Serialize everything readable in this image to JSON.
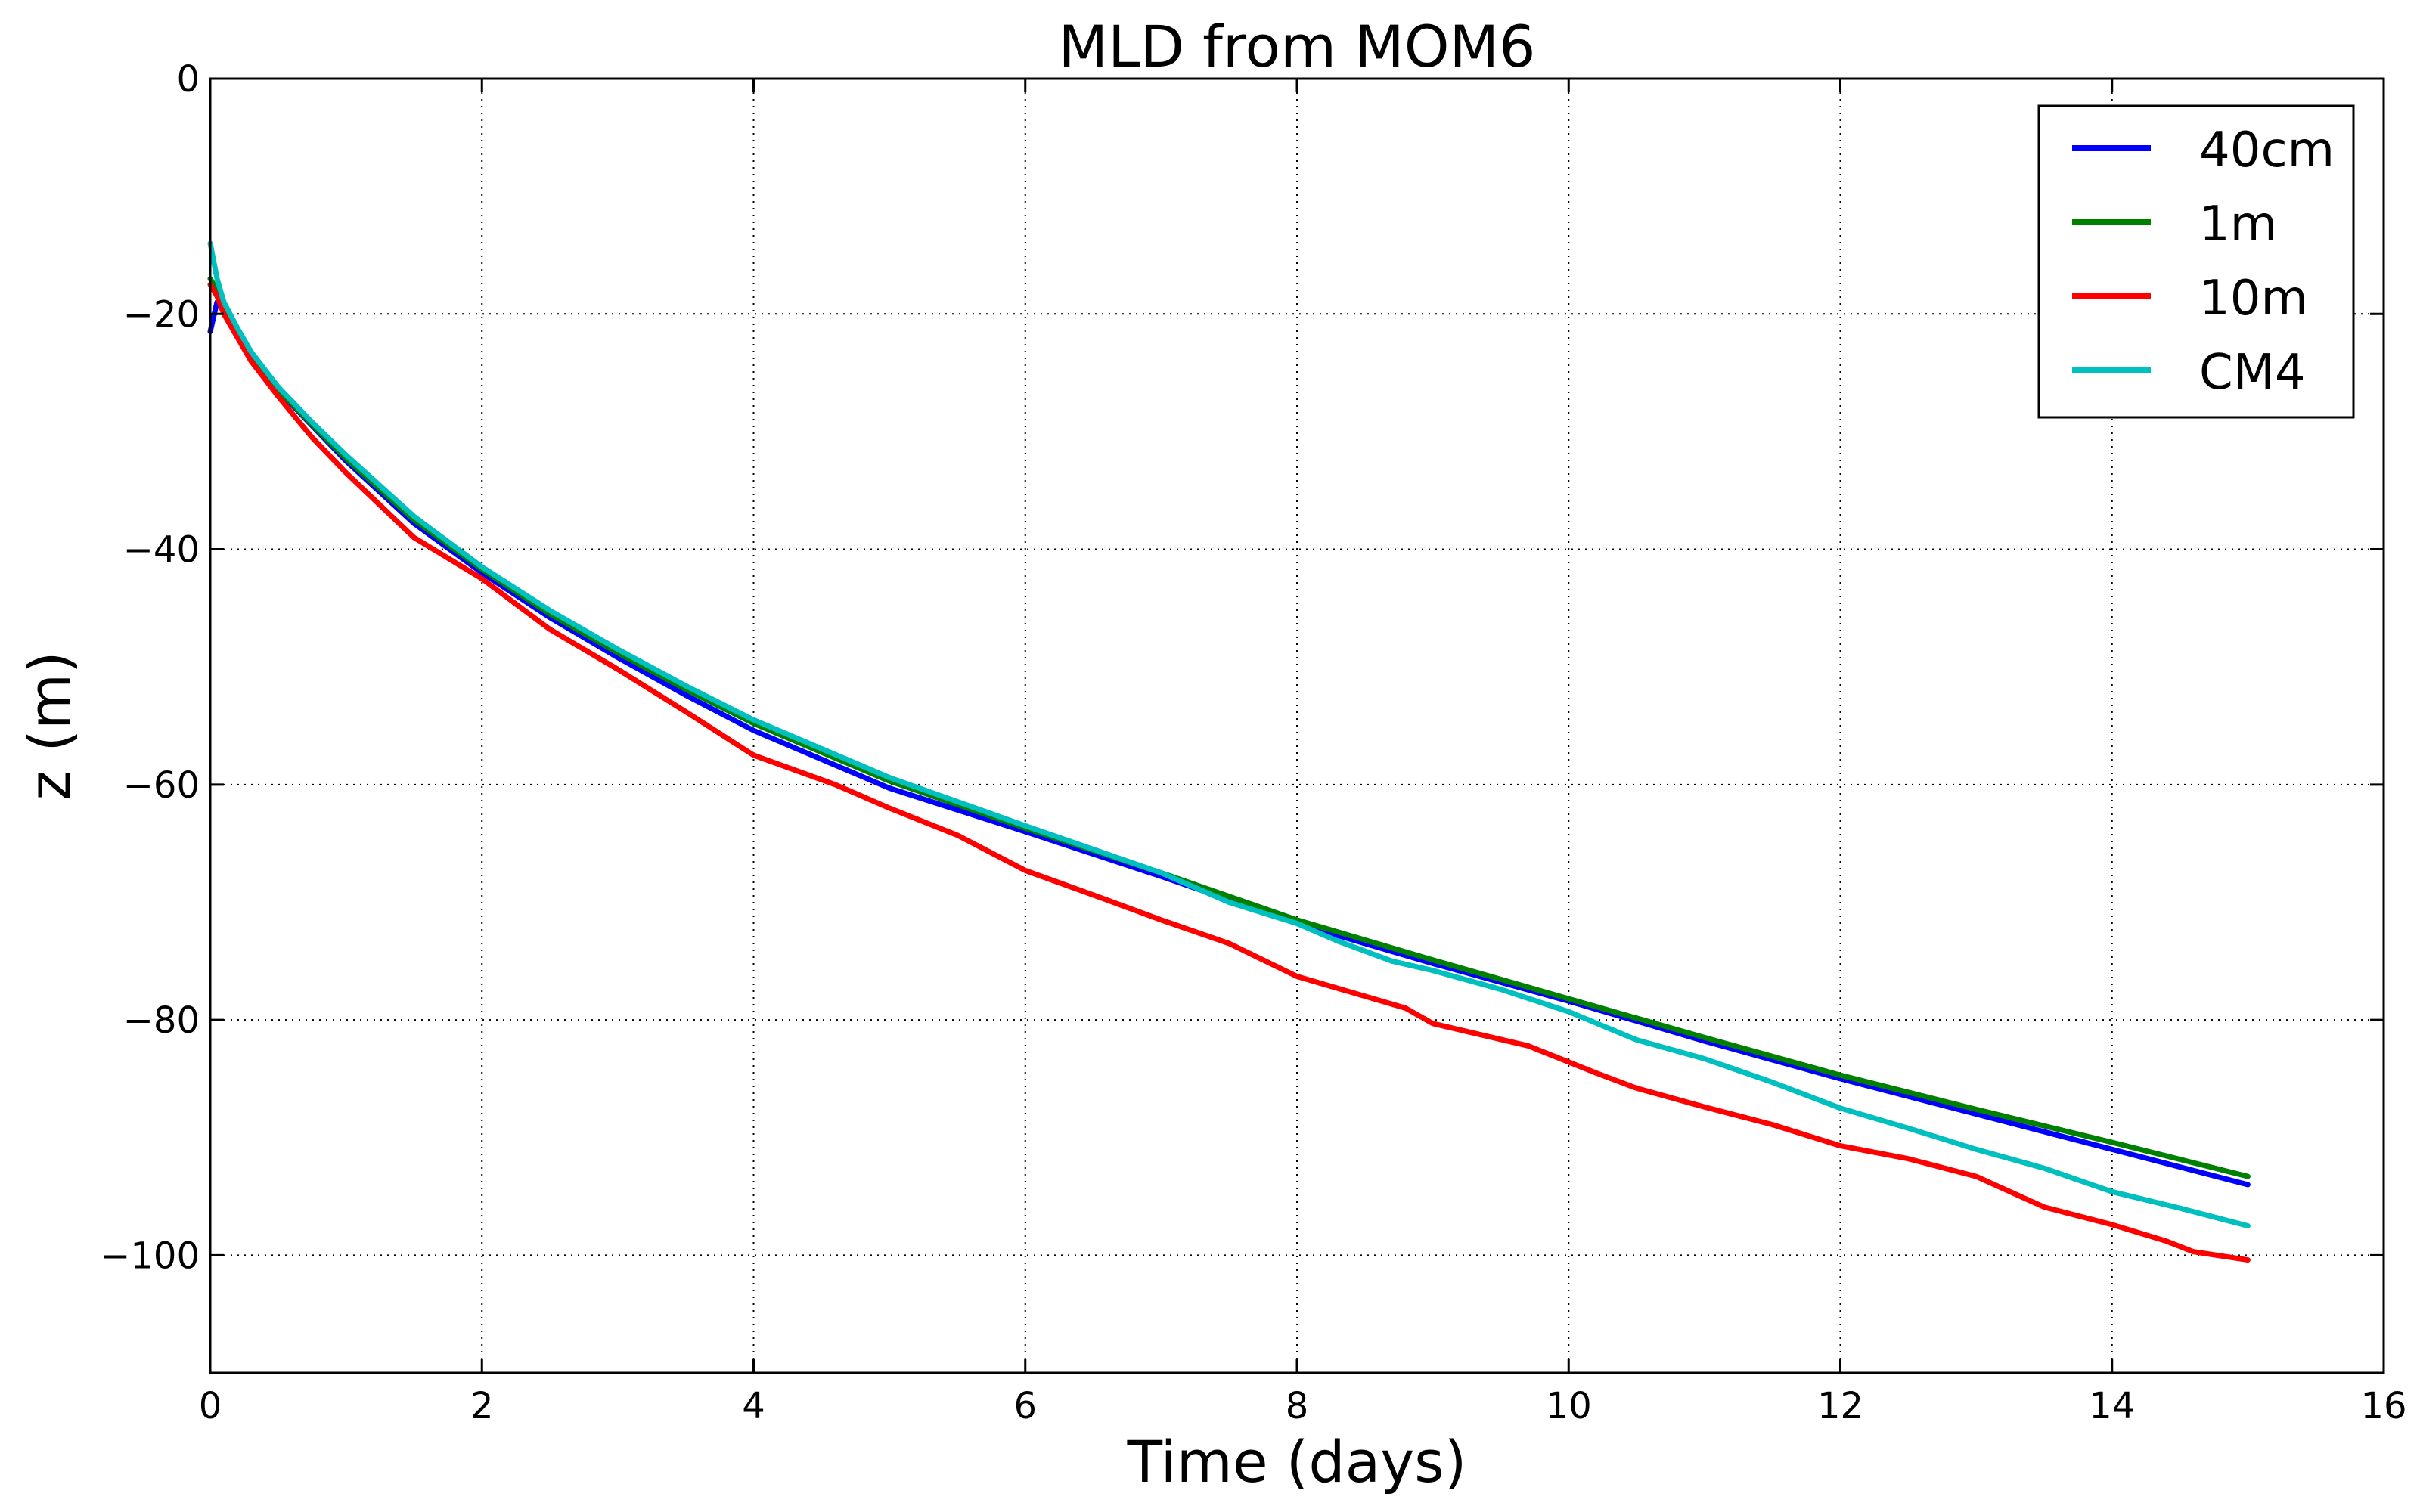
{
  "chart_data": {
    "type": "line",
    "title": "MLD from MOM6",
    "xlabel": "Time (days)",
    "ylabel": "z (m)",
    "xlim": [
      0,
      16
    ],
    "ylim": [
      -110,
      0
    ],
    "xticks": [
      0,
      2,
      4,
      6,
      8,
      10,
      12,
      14,
      16
    ],
    "yticks": [
      0,
      -20,
      -40,
      -60,
      -80,
      -100
    ],
    "xtick_labels": [
      "0",
      "2",
      "4",
      "6",
      "8",
      "10",
      "12",
      "14",
      "16"
    ],
    "ytick_labels": [
      "0",
      "−20",
      "−40",
      "−60",
      "−80",
      "−100"
    ],
    "grid": true,
    "legend_position": "top-right",
    "series": [
      {
        "name": "40cm",
        "color": "#0000ff",
        "x": [
          0,
          0.05,
          0.1,
          0.2,
          0.3,
          0.5,
          0.75,
          1,
          1.5,
          2,
          2.5,
          3,
          3.5,
          4,
          5,
          6,
          7,
          8,
          9,
          10,
          11,
          12,
          13,
          14,
          15
        ],
        "y": [
          -21.5,
          -19,
          -19.5,
          -21.5,
          -23.5,
          -26.5,
          -29.5,
          -32.5,
          -37.8,
          -42,
          -45.8,
          -49.2,
          -52.4,
          -55.4,
          -60.3,
          -64,
          -67.8,
          -71.8,
          -75.2,
          -78.4,
          -81.8,
          -85,
          -88,
          -91,
          -94
        ]
      },
      {
        "name": "1m",
        "color": "#008000",
        "x": [
          0,
          0.05,
          0.1,
          0.2,
          0.3,
          0.5,
          0.75,
          1,
          1.5,
          2,
          2.5,
          3,
          3.5,
          4,
          5,
          6,
          7,
          8,
          9,
          10,
          11,
          12,
          13,
          14,
          15
        ],
        "y": [
          -17,
          -18,
          -19.2,
          -21.3,
          -23.4,
          -26.4,
          -29.4,
          -32.3,
          -37.5,
          -41.7,
          -45.5,
          -48.8,
          -51.9,
          -54.8,
          -59.7,
          -63.7,
          -67.5,
          -71.5,
          -74.9,
          -78.2,
          -81.5,
          -84.7,
          -87.6,
          -90.4,
          -93.3
        ]
      },
      {
        "name": "10m",
        "color": "#ff0000",
        "x": [
          0,
          0.05,
          0.1,
          0.2,
          0.3,
          0.5,
          0.75,
          1,
          1.5,
          2,
          2.5,
          3,
          3.5,
          4,
          4.6,
          5,
          5.5,
          6,
          6.6,
          7,
          7.5,
          8,
          8.8,
          9,
          9.7,
          10.2,
          10.5,
          11,
          11.5,
          12,
          12.5,
          13,
          13.5,
          14,
          14.4,
          14.6,
          15
        ],
        "y": [
          -17.5,
          -18.5,
          -20,
          -22,
          -24,
          -27,
          -30.5,
          -33.5,
          -39,
          -42.5,
          -46.8,
          -50.2,
          -53.8,
          -57.5,
          -60,
          -62,
          -64.3,
          -67.3,
          -69.8,
          -71.5,
          -73.5,
          -76.3,
          -79,
          -80.3,
          -82.2,
          -84.5,
          -85.8,
          -87.4,
          -88.9,
          -90.7,
          -91.8,
          -93.3,
          -95.9,
          -97.4,
          -98.8,
          -99.7,
          -100.4
        ]
      },
      {
        "name": "CM4",
        "color": "#00bfbf",
        "x": [
          0,
          0.05,
          0.1,
          0.2,
          0.3,
          0.5,
          0.75,
          1,
          1.5,
          2,
          2.5,
          3,
          3.5,
          4,
          5,
          6,
          7,
          7.5,
          8,
          8.3,
          8.7,
          9,
          9.5,
          10,
          10.5,
          11,
          11.5,
          12,
          12.5,
          13,
          13.5,
          14,
          14.5,
          15
        ],
        "y": [
          -14,
          -17,
          -19,
          -21.2,
          -23.2,
          -26.2,
          -29.2,
          -32,
          -37.2,
          -41.5,
          -45.2,
          -48.5,
          -51.6,
          -54.5,
          -59.4,
          -63.5,
          -67.5,
          -70,
          -71.8,
          -73.3,
          -75,
          -75.8,
          -77.4,
          -79.3,
          -81.7,
          -83.3,
          -85.3,
          -87.5,
          -89.2,
          -91,
          -92.6,
          -94.6,
          -96,
          -97.5
        ]
      }
    ]
  }
}
